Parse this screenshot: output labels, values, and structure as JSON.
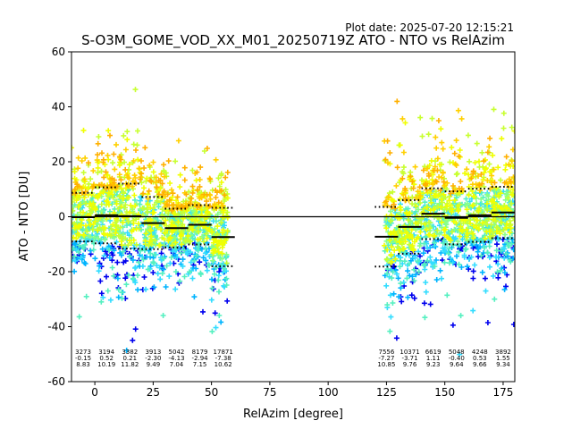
{
  "plot_date": "Plot date: 2025-07-20 12:15:21",
  "chart_data": {
    "type": "scatter",
    "title": "S-O3M_GOME_VOD_XX_M01_20250719Z ATO - NTO vs RelAzim",
    "xlabel": "RelAzim [degree]",
    "ylabel": "ATO - NTO [DU]",
    "xlim": [
      -10,
      180
    ],
    "ylim": [
      -60,
      60
    ],
    "xticks": [
      0,
      25,
      50,
      75,
      100,
      125,
      150,
      175
    ],
    "yticks": [
      -60,
      -40,
      -20,
      0,
      20,
      40,
      60
    ],
    "grid": false,
    "zero_line": 0,
    "bins": [
      {
        "x0": -10,
        "x1": 0,
        "mean": -0.15,
        "std": 8.83,
        "count": "3273",
        "mean_label": "-0.15",
        "std_label": "8.83"
      },
      {
        "x0": 0,
        "x1": 10,
        "mean": 0.52,
        "std": 10.19,
        "count": "3194",
        "mean_label": "0.52",
        "std_label": "10.19"
      },
      {
        "x0": 10,
        "x1": 20,
        "mean": 0.21,
        "std": 11.82,
        "count": "3382",
        "mean_label": "0.21",
        "std_label": "11.82"
      },
      {
        "x0": 20,
        "x1": 30,
        "mean": -2.3,
        "std": 9.49,
        "count": "3913",
        "mean_label": "-2.30",
        "std_label": "9.49"
      },
      {
        "x0": 30,
        "x1": 40,
        "mean": -4.13,
        "std": 7.04,
        "count": "5042",
        "mean_label": "-4.13",
        "std_label": "7.04"
      },
      {
        "x0": 40,
        "x1": 50,
        "mean": -2.94,
        "std": 7.15,
        "count": "8179",
        "mean_label": "-2.94",
        "std_label": "7.15"
      },
      {
        "x0": 50,
        "x1": 60,
        "mean": -7.38,
        "std": 10.62,
        "count": "17871",
        "mean_label": "-7.38",
        "std_label": "10.62"
      },
      {
        "x0": 120,
        "x1": 130,
        "mean": -7.27,
        "std": 10.85,
        "count": "7556",
        "mean_label": "-7.27",
        "std_label": "10.85"
      },
      {
        "x0": 130,
        "x1": 140,
        "mean": -3.71,
        "std": 9.76,
        "count": "10371",
        "mean_label": "-3.71",
        "std_label": "9.76"
      },
      {
        "x0": 140,
        "x1": 150,
        "mean": 1.11,
        "std": 9.23,
        "count": "6619",
        "mean_label": "1.11",
        "std_label": "9.23"
      },
      {
        "x0": 150,
        "x1": 160,
        "mean": -0.4,
        "std": 9.64,
        "count": "5048",
        "mean_label": "-0.40",
        "std_label": "9.64"
      },
      {
        "x0": 160,
        "x1": 170,
        "mean": 0.53,
        "std": 9.66,
        "count": "4248",
        "mean_label": "0.53",
        "std_label": "9.66"
      },
      {
        "x0": 170,
        "x1": 180,
        "mean": 1.55,
        "std": 9.34,
        "count": "3892",
        "mean_label": "1.55",
        "std_label": "9.34"
      }
    ],
    "scatter_ranges": [
      [
        -10,
        57
      ],
      [
        124,
        180
      ]
    ],
    "marker": "+",
    "colormap": [
      "#0000ee",
      "#00b4ff",
      "#33ddff",
      "#55f0c0",
      "#88ff88",
      "#c8ff30",
      "#f0ff00",
      "#ffd000",
      "#ffb000"
    ]
  }
}
